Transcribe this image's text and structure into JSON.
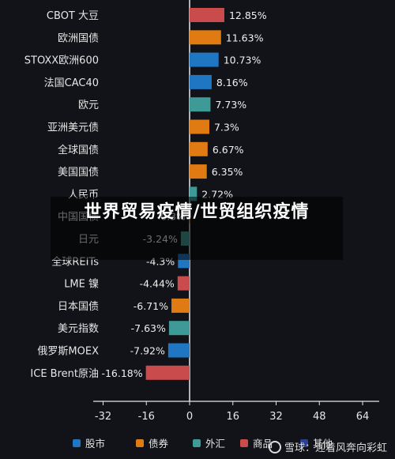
{
  "chart_data": {
    "type": "bar",
    "orientation": "horizontal",
    "categories": [
      "CBOT 大豆",
      "欧洲国债",
      "STOXX欧洲600",
      "法国CAC40",
      "欧元",
      "亚洲美元债",
      "全球国债",
      "美国国债",
      "人民币",
      "中国国债",
      "日元",
      "全球REITs",
      "LME 镍",
      "日本国债",
      "美元指数",
      "俄罗斯MOEX",
      "ICE Brent原油"
    ],
    "values": [
      12.85,
      11.63,
      10.73,
      8.16,
      7.73,
      7.3,
      6.67,
      6.35,
      2.72,
      -0.3,
      -3.24,
      -4.3,
      -4.44,
      -6.71,
      -7.63,
      -7.92,
      -16.18
    ],
    "value_labels": [
      "12.85%",
      "11.63%",
      "10.73%",
      "8.16%",
      "7.73%",
      "7.3%",
      "6.67%",
      "6.35%",
      "2.72%",
      "-0.3%",
      "-3.24%",
      "-4.3%",
      "-4.44%",
      "-6.71%",
      "-7.63%",
      "-7.92%",
      "-16.18%"
    ],
    "groups": [
      "商品",
      "债券",
      "股市",
      "股市",
      "外汇",
      "债券",
      "债券",
      "债券",
      "外汇",
      "债券",
      "外汇",
      "股市",
      "商品",
      "债券",
      "外汇",
      "股市",
      "商品"
    ],
    "xlim": [
      -36,
      68
    ],
    "x_ticks": [
      -32,
      -16,
      0,
      16,
      32,
      48,
      64
    ],
    "legend": [
      {
        "name": "股市",
        "color": "#1f77c4"
      },
      {
        "name": "债券",
        "color": "#e07b14"
      },
      {
        "name": "外汇",
        "color": "#3e9a96"
      },
      {
        "name": "商品",
        "color": "#c94b4b"
      },
      {
        "name": "其他",
        "color": "#2e3f8f"
      }
    ],
    "legend_position": "bottom",
    "grid": false
  },
  "overlay": {
    "title": "世界贸易疫情/世贸组织疫情"
  },
  "watermark": {
    "text": "雪球：迎着风奔向彩虹"
  }
}
